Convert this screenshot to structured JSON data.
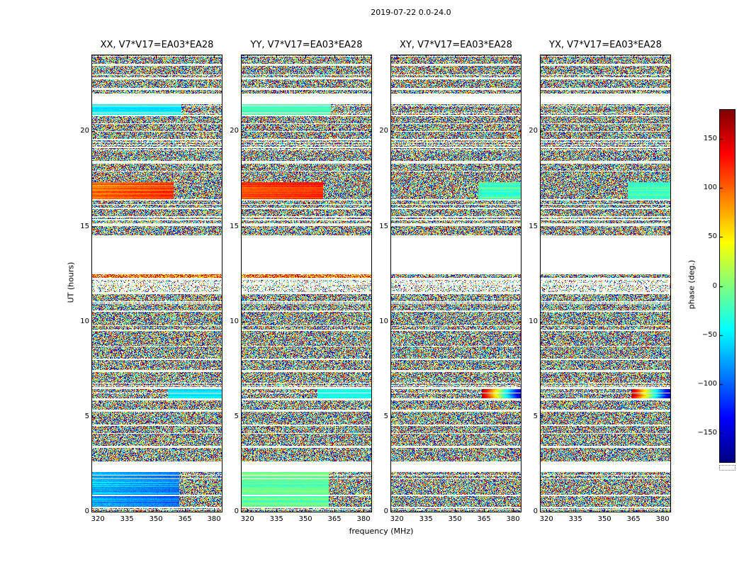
{
  "figure_title": "2019-07-22 0.0-24.0",
  "chart_data": {
    "type": "heatmap",
    "content_summary": "Four dynamic-spectrum waterfall panels of interferometric visibility phase (baseline V7*V17 = EA03*EA28) versus frequency and UT time for polarizations XX, YY, XY, YX; mostly random phase noise with white time gaps, smooth coherent bands (cyan/green and orange/red) in XX/YY near UT 21, 17, and 0-2, and a jet colorbar of phase in degrees.",
    "panels": [
      {
        "pol": "XX",
        "title": "XX, V7*V17=EA03*EA28"
      },
      {
        "pol": "YY",
        "title": "YY, V7*V17=EA03*EA28"
      },
      {
        "pol": "XY",
        "title": "XY, V7*V17=EA03*EA28"
      },
      {
        "pol": "YX",
        "title": "YX, V7*V17=EA03*EA28"
      }
    ],
    "xlabel": "frequency (MHz)",
    "ylabel": "UT (hours)",
    "xticks": [
      320,
      335,
      350,
      365,
      380
    ],
    "yticks": [
      0,
      5,
      10,
      15,
      20
    ],
    "xlim": [
      317,
      384
    ],
    "ylim": [
      0,
      24
    ],
    "colorbar": {
      "label": "phase (deg.)",
      "colormap": "jet",
      "range": [
        -180,
        180
      ],
      "tick_values": [
        150,
        100,
        50,
        0,
        -50,
        -100,
        -150
      ],
      "tick_labels": [
        "150",
        "100",
        "50",
        "0",
        "−50",
        "−100",
        "−150"
      ]
    },
    "bands": [
      {
        "ut": [
          24.0,
          23.55
        ],
        "fill": "noise"
      },
      {
        "ut": [
          23.55,
          23.45
        ],
        "fill": "gap"
      },
      {
        "ut": [
          23.45,
          22.85
        ],
        "fill": "noise"
      },
      {
        "ut": [
          22.85,
          22.72
        ],
        "fill": "gap"
      },
      {
        "ut": [
          22.72,
          22.3
        ],
        "fill": "noise"
      },
      {
        "ut": [
          22.3,
          22.18
        ],
        "fill": "gap"
      },
      {
        "ut": [
          22.18,
          21.98
        ],
        "fill": "noise"
      },
      {
        "ut": [
          21.98,
          21.42
        ],
        "fill": "gap"
      },
      {
        "ut": [
          21.42,
          20.88
        ],
        "fill": {
          "XX": {
            "smooth": {
              "f": [
                317,
                363
              ],
              "phase": -48,
              "spread": 14,
              "grad": 0
            }
          },
          "YY": {
            "smooth": {
              "f": [
                317,
                363
              ],
              "phase": -18,
              "spread": 10,
              "grad": 0
            }
          },
          "XY": "noise",
          "YX": "noise"
        }
      },
      {
        "ut": [
          20.88,
          20.78
        ],
        "fill": "gap"
      },
      {
        "ut": [
          20.78,
          20.44
        ],
        "fill": "noise"
      },
      {
        "ut": [
          20.44,
          20.38
        ],
        "fill": "gap"
      },
      {
        "ut": [
          20.38,
          20.02
        ],
        "fill": "noise"
      },
      {
        "ut": [
          20.02,
          19.96
        ],
        "fill": "gap"
      },
      {
        "ut": [
          19.96,
          19.62
        ],
        "fill": "noise"
      },
      {
        "ut": [
          19.62,
          19.52
        ],
        "fill": "gap"
      },
      {
        "ut": [
          19.52,
          19.18
        ],
        "fill": "noise"
      },
      {
        "ut": [
          19.18,
          19.12
        ],
        "fill": "gap"
      },
      {
        "ut": [
          19.12,
          18.45
        ],
        "fill": "noise"
      },
      {
        "ut": [
          18.45,
          18.3
        ],
        "fill": "gap"
      },
      {
        "ut": [
          18.3,
          17.93
        ],
        "fill": "noise"
      },
      {
        "ut": [
          17.93,
          17.88
        ],
        "fill": "gap"
      },
      {
        "ut": [
          17.88,
          17.32
        ],
        "fill": "noise"
      },
      {
        "ut": [
          17.32,
          16.45
        ],
        "fill": {
          "XX": {
            "smooth": {
              "f": [
                317,
                359
              ],
              "phase": 92,
              "spread": 20,
              "grad": 0.5
            }
          },
          "YY": {
            "smooth": {
              "f": [
                317,
                359
              ],
              "phase": 108,
              "spread": 16,
              "grad": 0.3
            }
          },
          "XY": {
            "smooth": {
              "f": [
                362,
                384
              ],
              "phase": -22,
              "spread": 16,
              "grad": 0
            }
          },
          "YX": {
            "smooth": {
              "f": [
                362,
                384
              ],
              "phase": -22,
              "spread": 16,
              "grad": 0
            }
          }
        }
      },
      {
        "ut": [
          16.45,
          16.35
        ],
        "fill": "gap"
      },
      {
        "ut": [
          16.35,
          15.98
        ],
        "fill": "noise"
      },
      {
        "ut": [
          15.98,
          15.92
        ],
        "fill": "gap"
      },
      {
        "ut": [
          15.92,
          15.55
        ],
        "fill": "noise"
      },
      {
        "ut": [
          15.55,
          15.48
        ],
        "fill": "gap"
      },
      {
        "ut": [
          15.48,
          15.15
        ],
        "fill": "noise"
      },
      {
        "ut": [
          15.15,
          15.0
        ],
        "fill": "gap"
      },
      {
        "ut": [
          15.0,
          14.55
        ],
        "fill": "noise"
      },
      {
        "ut": [
          14.55,
          12.5
        ],
        "fill": "gap"
      },
      {
        "ut": [
          12.5,
          12.28
        ],
        "fill": {
          "XX": "warm",
          "YY": "warm",
          "XY": "noise",
          "YX": "noise"
        }
      },
      {
        "ut": [
          12.28,
          12.2
        ],
        "fill": "gap"
      },
      {
        "ut": [
          12.2,
          11.55
        ],
        "fill": "sparse"
      },
      {
        "ut": [
          11.55,
          11.45
        ],
        "fill": "gap"
      },
      {
        "ut": [
          11.45,
          11.05
        ],
        "fill": "noise"
      },
      {
        "ut": [
          11.05,
          11.0
        ],
        "fill": "gap"
      },
      {
        "ut": [
          11.0,
          10.6
        ],
        "fill": "noise"
      },
      {
        "ut": [
          10.6,
          10.52
        ],
        "fill": "gap"
      },
      {
        "ut": [
          10.52,
          9.56
        ],
        "fill": "noise"
      },
      {
        "ut": [
          9.56,
          9.5
        ],
        "fill": "gap"
      },
      {
        "ut": [
          9.5,
          7.45
        ],
        "fill": "noise"
      },
      {
        "ut": [
          7.45,
          7.36
        ],
        "fill": "gap"
      },
      {
        "ut": [
          7.36,
          6.55
        ],
        "fill": "noise"
      },
      {
        "ut": [
          6.55,
          6.46
        ],
        "fill": "gap"
      },
      {
        "ut": [
          6.46,
          5.95
        ],
        "fill": {
          "XX": {
            "smooth": {
              "f": [
                356,
                384
              ],
              "phase": -55,
              "spread": 14,
              "grad": 0
            }
          },
          "YY": {
            "smooth": {
              "f": [
                356,
                384
              ],
              "phase": -40,
              "spread": 12,
              "grad": 0
            }
          },
          "XY": {
            "rainbow": {
              "f": [
                364,
                384
              ]
            }
          },
          "YX": {
            "rainbow": {
              "f": [
                364,
                384
              ]
            }
          }
        }
      },
      {
        "ut": [
          5.95,
          5.86
        ],
        "fill": "gap"
      },
      {
        "ut": [
          5.86,
          5.35
        ],
        "fill": "noise"
      },
      {
        "ut": [
          5.35,
          5.27
        ],
        "fill": "gap"
      },
      {
        "ut": [
          5.27,
          4.6
        ],
        "fill": "noise"
      },
      {
        "ut": [
          4.6,
          4.52
        ],
        "fill": "gap"
      },
      {
        "ut": [
          4.52,
          4.15
        ],
        "fill": "noise"
      },
      {
        "ut": [
          4.15,
          4.1
        ],
        "fill": "gap"
      },
      {
        "ut": [
          4.1,
          3.45
        ],
        "fill": "noise"
      },
      {
        "ut": [
          3.45,
          3.36
        ],
        "fill": "gap"
      },
      {
        "ut": [
          3.36,
          2.65
        ],
        "fill": "noise"
      },
      {
        "ut": [
          2.65,
          2.1
        ],
        "fill": "gap"
      },
      {
        "ut": [
          2.1,
          0.9
        ],
        "fill": {
          "XX": {
            "smooth": {
              "f": [
                317,
                362
              ],
              "phase": -65,
              "spread": 24,
              "grad": -0.5
            }
          },
          "YY": {
            "smooth": {
              "f": [
                317,
                362
              ],
              "phase": -12,
              "spread": 14,
              "grad": 0
            }
          },
          "XY": "noise",
          "YX": "noise"
        }
      },
      {
        "ut": [
          0.9,
          0.82
        ],
        "fill": "gap"
      },
      {
        "ut": [
          0.82,
          0.25
        ],
        "fill": {
          "XX": {
            "smooth": {
              "f": [
                317,
                362
              ],
              "phase": -78,
              "spread": 24,
              "grad": -0.5
            }
          },
          "YY": {
            "smooth": {
              "f": [
                317,
                362
              ],
              "phase": -12,
              "spread": 14,
              "grad": 0
            }
          },
          "XY": "noise",
          "YX": "noise"
        }
      },
      {
        "ut": [
          0.25,
          0.18
        ],
        "fill": "gap"
      },
      {
        "ut": [
          0.18,
          0.0
        ],
        "fill": "noise"
      }
    ]
  }
}
